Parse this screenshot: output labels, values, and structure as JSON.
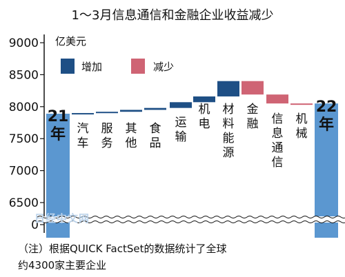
{
  "title": "1～3月信息通信和金融企业收益减少",
  "unit": "亿美元",
  "legend": {
    "increase": {
      "label": "增加",
      "color": "#1e4f85"
    },
    "decrease": {
      "label": "减少",
      "color": "#cf6474"
    }
  },
  "watermark": "日经中文网",
  "notes": [
    "（注）根据QUICK FactSet的数据统计了全球",
    "约4300家主要企业"
  ],
  "chart_data": {
    "type": "bar",
    "subtype": "waterfall",
    "title": "1～3月信息通信和金融企业收益减少",
    "ylabel": "亿美元",
    "ylim": [
      6500,
      9000
    ],
    "yticks": [
      9000,
      8500,
      8000,
      7500,
      7000,
      6500,
      0
    ],
    "axis_break": "between 0 and 6500",
    "categories": [
      "21年",
      "汽车",
      "服务",
      "其他",
      "食品",
      "运输",
      "机电",
      "材料能源",
      "金融",
      "信息通信",
      "机械",
      "22年"
    ],
    "values": [
      7890,
      10,
      20,
      30,
      30,
      90,
      90,
      240,
      -210,
      -140,
      -10,
      8050
    ],
    "bar_roles": [
      "total",
      "increase",
      "increase",
      "increase",
      "increase",
      "increase",
      "increase",
      "increase",
      "decrease",
      "decrease",
      "decrease",
      "total"
    ],
    "total_color": "#5b97d0",
    "grid": false,
    "legend_position": "top-left"
  }
}
